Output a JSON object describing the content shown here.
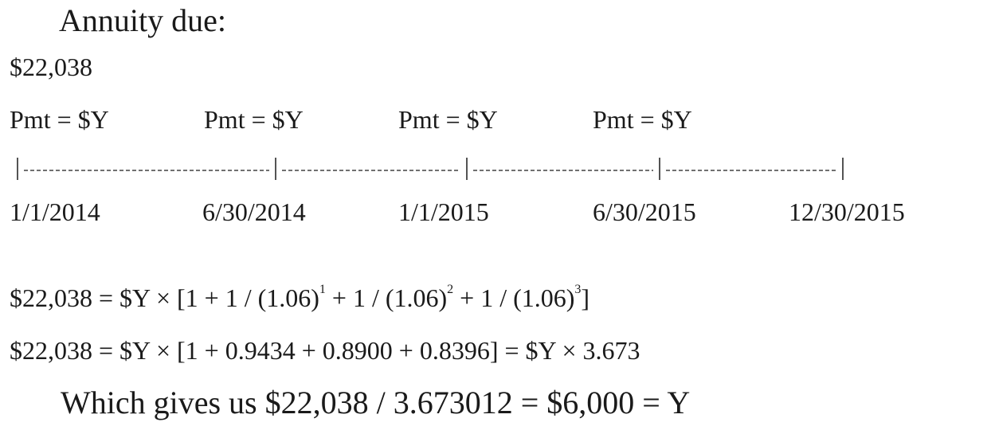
{
  "heading": "Annuity due:",
  "present_value": "$22,038",
  "payments": [
    "Pmt = $Y",
    "Pmt = $Y",
    "Pmt = $Y",
    "Pmt = $Y"
  ],
  "dates": [
    "1/1/2014",
    "6/30/2014",
    "1/1/2015",
    "6/30/2015",
    "12/30/2015"
  ],
  "equation1": {
    "start": "$22,038 = $Y × [1 + 1 / (1.06)",
    "exp1": "1",
    "mid1": " + 1 / (1.06)",
    "exp2": "2",
    "mid2": " + 1 / (1.06)",
    "exp3": "3",
    "end": "]"
  },
  "equation2": "$22,038 = $Y × [1 + 0.9434 + 0.8900 + 0.8396] = $Y × 3.673",
  "conclusion": "Which gives us $22,038 / 3.673012 = $6,000 = Y"
}
